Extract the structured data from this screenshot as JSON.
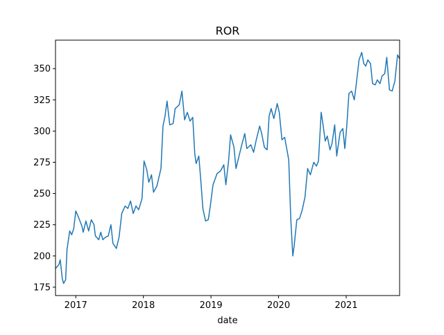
{
  "chart_data": {
    "type": "line",
    "title": "ROR",
    "x_label": "date",
    "x": [
      2016.7,
      2016.75,
      2016.77,
      2016.8,
      2016.82,
      2016.85,
      2016.87,
      2016.91,
      2016.94,
      2016.97,
      2017.0,
      2017.04,
      2017.09,
      2017.11,
      2017.15,
      2017.19,
      2017.23,
      2017.27,
      2017.29,
      2017.34,
      2017.37,
      2017.4,
      2017.44,
      2017.48,
      2017.52,
      2017.55,
      2017.6,
      2017.64,
      2017.68,
      2017.73,
      2017.77,
      2017.81,
      2017.85,
      2017.89,
      2017.93,
      2017.98,
      2018.01,
      2018.05,
      2018.08,
      2018.12,
      2018.15,
      2018.2,
      2018.26,
      2018.29,
      2018.32,
      2018.35,
      2018.39,
      2018.44,
      2018.47,
      2018.53,
      2018.57,
      2018.61,
      2018.65,
      2018.69,
      2018.73,
      2018.76,
      2018.78,
      2018.82,
      2018.85,
      2018.88,
      2018.92,
      2018.96,
      2018.99,
      2019.03,
      2019.09,
      2019.14,
      2019.19,
      2019.22,
      2019.26,
      2019.29,
      2019.34,
      2019.37,
      2019.41,
      2019.46,
      2019.5,
      2019.53,
      2019.59,
      2019.63,
      2019.67,
      2019.72,
      2019.75,
      2019.79,
      2019.83,
      2019.86,
      2019.89,
      2019.93,
      2019.98,
      2020.01,
      2020.05,
      2020.09,
      2020.15,
      2020.18,
      2020.21,
      2020.23,
      2020.27,
      2020.31,
      2020.35,
      2020.39,
      2020.43,
      2020.47,
      2020.52,
      2020.56,
      2020.59,
      2020.63,
      2020.66,
      2020.69,
      2020.72,
      2020.76,
      2020.79,
      2020.83,
      2020.86,
      2020.91,
      2020.95,
      2020.98,
      2021.01,
      2021.04,
      2021.08,
      2021.12,
      2021.15,
      2021.19,
      2021.23,
      2021.26,
      2021.29,
      2021.32,
      2021.36,
      2021.39,
      2021.43,
      2021.46,
      2021.5,
      2021.53,
      2021.57,
      2021.6,
      2021.64,
      2021.68,
      2021.72,
      2021.76,
      2021.79
    ],
    "series": [
      {
        "name": "ROR",
        "color": "#1f77b4",
        "values": [
          190,
          193,
          197,
          182,
          178,
          181,
          205,
          220,
          217,
          222,
          236,
          231,
          224,
          219,
          228,
          220,
          229,
          225,
          216,
          213,
          219,
          213,
          215,
          216,
          225,
          210,
          206,
          215,
          234,
          240,
          238,
          244,
          234,
          240,
          237,
          246,
          276,
          269,
          259,
          265,
          251,
          256,
          270,
          304,
          312,
          324,
          305,
          306,
          318,
          321,
          332,
          309,
          315,
          308,
          311,
          282,
          274,
          280,
          260,
          238,
          228,
          229,
          240,
          257,
          266,
          268,
          273,
          257,
          276,
          297,
          287,
          270,
          279,
          290,
          298,
          286,
          289,
          283,
          293,
          304,
          298,
          287,
          285,
          312,
          318,
          310,
          322,
          315,
          293,
          295,
          277,
          230,
          200,
          208,
          229,
          230,
          237,
          247,
          270,
          265,
          275,
          272,
          276,
          315,
          304,
          292,
          296,
          285,
          290,
          305,
          280,
          299,
          302,
          286,
          305,
          330,
          332,
          325,
          338,
          357,
          363,
          354,
          352,
          357,
          354,
          338,
          337,
          341,
          338,
          344,
          346,
          359,
          333,
          332,
          340,
          361,
          358
        ]
      }
    ],
    "xlim": [
      2016.7,
      2021.79
    ],
    "xticks": [
      2017,
      2018,
      2019,
      2020,
      2021
    ],
    "ylim": [
      168.3,
      372.8
    ],
    "yticks": [
      175,
      200,
      225,
      250,
      275,
      300,
      325,
      350
    ],
    "grid": false
  }
}
